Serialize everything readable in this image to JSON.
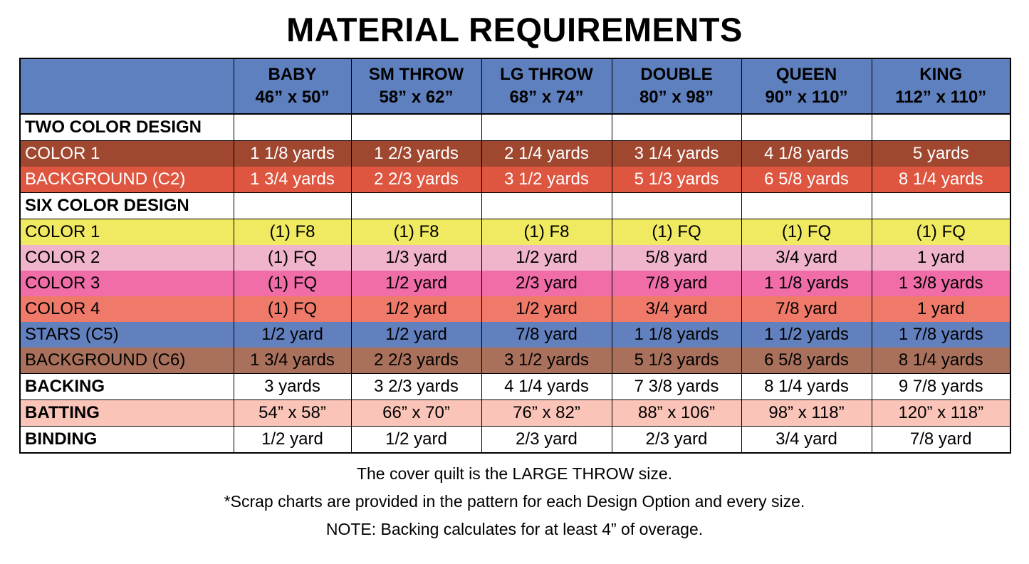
{
  "title": "MATERIAL REQUIREMENTS",
  "colors": {
    "header_bg": "#5F80BE",
    "header_fg": "#000000",
    "border": "#000000"
  },
  "table": {
    "columns": [
      {
        "name": "BABY",
        "size": "46” x 50”"
      },
      {
        "name": "SM THROW",
        "size": "58” x 62”"
      },
      {
        "name": "LG THROW",
        "size": "68” x 74”"
      },
      {
        "name": "DOUBLE",
        "size": "80” x 98”"
      },
      {
        "name": "QUEEN",
        "size": "90” x 110”"
      },
      {
        "name": "KING",
        "size": "112” x 110”"
      }
    ],
    "rows": [
      {
        "label": "TWO COLOR DESIGN",
        "values": [
          "",
          "",
          "",
          "",
          "",
          ""
        ],
        "bg": "#FFFFFF",
        "fg": "#000000",
        "label_bold": true,
        "gridlines": true
      },
      {
        "label": "COLOR 1",
        "values": [
          "1 1/8 yards",
          "1 2/3 yards",
          "2 1/4 yards",
          "3 1/4 yards",
          "4 1/8 yards",
          "5 yards"
        ],
        "bg": "#A04730",
        "fg": "#FFFFFF",
        "label_bold": false,
        "gridlines": false
      },
      {
        "label": "BACKGROUND (C2)",
        "values": [
          "1 3/4 yards",
          "2 2/3 yards",
          "3 1/2 yards",
          "5 1/3 yards",
          "6 5/8 yards",
          "8 1/4 yards"
        ],
        "bg": "#DE5540",
        "fg": "#FFFFFF",
        "label_bold": false,
        "gridlines": false
      },
      {
        "label": "SIX COLOR DESIGN",
        "values": [
          "",
          "",
          "",
          "",
          "",
          ""
        ],
        "bg": "#FFFFFF",
        "fg": "#000000",
        "label_bold": true,
        "gridlines": true
      },
      {
        "label": "COLOR 1",
        "values": [
          "(1) F8",
          "(1) F8",
          "(1) F8",
          "(1) FQ",
          "(1) FQ",
          "(1) FQ"
        ],
        "bg": "#F0EA62",
        "fg": "#000000",
        "label_bold": false,
        "gridlines": false
      },
      {
        "label": "COLOR 2",
        "values": [
          "(1) FQ",
          "1/3 yard",
          "1/2 yard",
          "5/8 yard",
          "3/4 yard",
          "1 yard"
        ],
        "bg": "#F0B4CD",
        "fg": "#000000",
        "label_bold": false,
        "gridlines": false
      },
      {
        "label": "COLOR 3",
        "values": [
          "(1) FQ",
          "1/2 yard",
          "2/3 yard",
          "7/8 yard",
          "1 1/8 yards",
          "1 3/8 yards"
        ],
        "bg": "#F06DA8",
        "fg": "#000000",
        "label_bold": false,
        "gridlines": false
      },
      {
        "label": "COLOR 4",
        "values": [
          "(1) FQ",
          "1/2 yard",
          "1/2 yard",
          "3/4 yard",
          "7/8 yard",
          "1 yard"
        ],
        "bg": "#F07A6A",
        "fg": "#000000",
        "label_bold": false,
        "gridlines": false
      },
      {
        "label": "STARS (C5)",
        "values": [
          "1/2 yard",
          "1/2 yard",
          "7/8 yard",
          "1 1/8 yards",
          "1 1/2 yards",
          "1 7/8 yards"
        ],
        "bg": "#6380BE",
        "fg": "#000000",
        "label_bold": false,
        "gridlines": false
      },
      {
        "label": "BACKGROUND (C6)",
        "values": [
          "1 3/4 yards",
          "2 2/3 yards",
          "3 1/2 yards",
          "5 1/3 yards",
          "6 5/8 yards",
          "8 1/4 yards"
        ],
        "bg": "#A9715B",
        "fg": "#000000",
        "label_bold": false,
        "gridlines": false
      },
      {
        "label": "BACKING",
        "values": [
          "3 yards",
          "3 2/3 yards",
          "4 1/4 yards",
          "7 3/8 yards",
          "8 1/4 yards",
          "9 7/8 yards"
        ],
        "bg": "#FFFFFF",
        "fg": "#000000",
        "label_bold": true,
        "gridlines": true
      },
      {
        "label": "BATTING",
        "values": [
          "54” x 58”",
          "66” x 70”",
          "76” x 82”",
          "88” x 106”",
          "98” x 118”",
          "120” x 118”"
        ],
        "bg": "#FBC4B8",
        "fg": "#000000",
        "label_bold": true,
        "gridlines": true
      },
      {
        "label": "BINDING",
        "values": [
          "1/2 yard",
          "1/2 yard",
          "2/3 yard",
          "2/3 yard",
          "3/4 yard",
          "7/8 yard"
        ],
        "bg": "#FFFFFF",
        "fg": "#000000",
        "label_bold": true,
        "gridlines": true
      }
    ]
  },
  "footnotes": [
    "The cover quilt is the LARGE THROW size.",
    "*Scrap charts are provided in the pattern for each Design Option and every size.",
    "NOTE: Backing calculates for at least 4” of overage."
  ]
}
